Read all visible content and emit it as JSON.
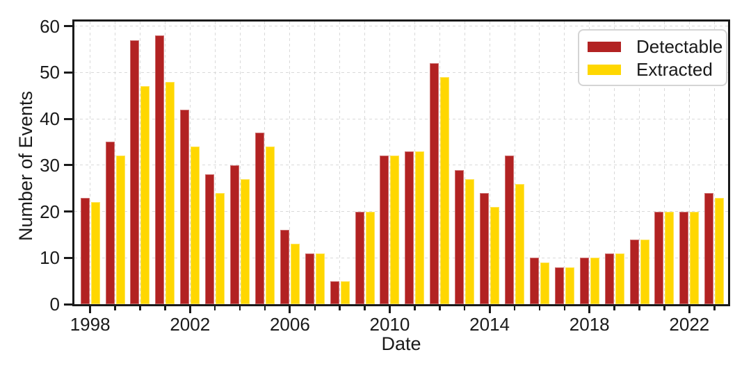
{
  "chart_data": {
    "type": "bar",
    "title": "",
    "xlabel": "Date",
    "ylabel": "Number of Events",
    "categories": [
      "1998",
      "1999",
      "2000",
      "2001",
      "2002",
      "2003",
      "2004",
      "2005",
      "2006",
      "2007",
      "2008",
      "2009",
      "2010",
      "2011",
      "2012",
      "2013",
      "2014",
      "2015",
      "2016",
      "2017",
      "2018",
      "2019",
      "2020",
      "2021",
      "2022",
      "2023"
    ],
    "series": [
      {
        "name": "Detectable",
        "color": "#B22222",
        "values": [
          23,
          35,
          57,
          58,
          42,
          28,
          30,
          37,
          16,
          11,
          5,
          20,
          32,
          33,
          52,
          29,
          24,
          32,
          10,
          8,
          10,
          11,
          14,
          20,
          20,
          24
        ]
      },
      {
        "name": "Extracted",
        "color": "#FFD700",
        "values": [
          22,
          32,
          47,
          48,
          34,
          24,
          27,
          34,
          13,
          11,
          5,
          20,
          32,
          33,
          49,
          27,
          21,
          26,
          9,
          8,
          10,
          11,
          14,
          20,
          20,
          23
        ]
      }
    ],
    "ylim": [
      0,
      61
    ],
    "yticks": [
      0,
      10,
      20,
      30,
      40,
      50,
      60
    ],
    "xticks_labeled": [
      1998,
      2002,
      2006,
      2010,
      2014,
      2018,
      2022
    ],
    "xlim": [
      1997.37,
      2023.55
    ],
    "grid": {
      "show": true,
      "color": "#d9d9d9",
      "style": "dashed"
    },
    "legend": {
      "position": "upper-right"
    }
  }
}
